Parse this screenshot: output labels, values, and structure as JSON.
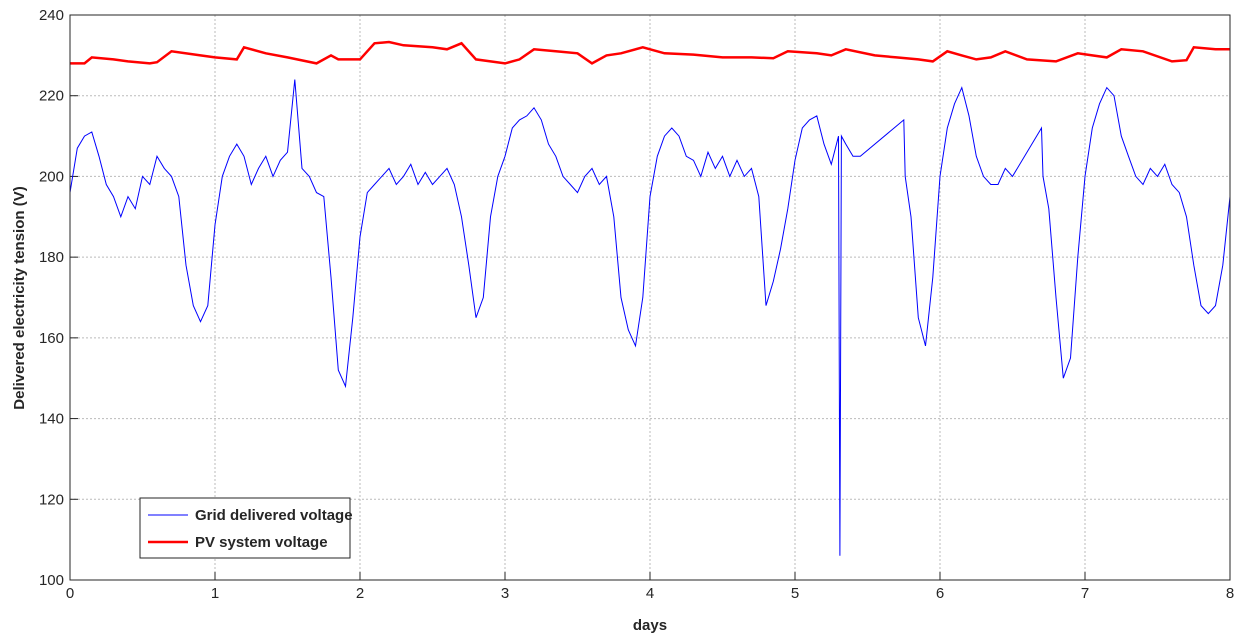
{
  "chart_data": {
    "type": "line",
    "xlabel": "days",
    "ylabel": "Delivered electricity tension (V)",
    "xlim": [
      0,
      8
    ],
    "ylim": [
      100,
      240
    ],
    "xticks": [
      0,
      1,
      2,
      3,
      4,
      5,
      6,
      7,
      8
    ],
    "yticks": [
      100,
      120,
      140,
      160,
      180,
      200,
      220,
      240
    ],
    "grid": true,
    "legend": "lower left",
    "series": [
      {
        "name": "Grid delivered voltage",
        "color": "#0000ff",
        "width": 1,
        "x": [
          0,
          0.05,
          0.1,
          0.15,
          0.2,
          0.25,
          0.3,
          0.35,
          0.4,
          0.45,
          0.5,
          0.55,
          0.6,
          0.65,
          0.7,
          0.75,
          0.8,
          0.85,
          0.9,
          0.95,
          1.0,
          1.05,
          1.1,
          1.15,
          1.2,
          1.25,
          1.3,
          1.35,
          1.4,
          1.45,
          1.5,
          1.55,
          1.6,
          1.65,
          1.7,
          1.75,
          1.8,
          1.85,
          1.9,
          1.95,
          2.0,
          2.05,
          2.1,
          2.15,
          2.2,
          2.25,
          2.3,
          2.35,
          2.4,
          2.45,
          2.5,
          2.55,
          2.6,
          2.65,
          2.7,
          2.75,
          2.8,
          2.85,
          2.9,
          2.95,
          3.0,
          3.05,
          3.1,
          3.15,
          3.2,
          3.25,
          3.3,
          3.35,
          3.4,
          3.45,
          3.5,
          3.55,
          3.6,
          3.65,
          3.7,
          3.75,
          3.8,
          3.85,
          3.9,
          3.95,
          4.0,
          4.05,
          4.1,
          4.15,
          4.2,
          4.25,
          4.3,
          4.35,
          4.4,
          4.45,
          4.5,
          4.55,
          4.6,
          4.65,
          4.7,
          4.75,
          4.8,
          4.85,
          4.9,
          4.95,
          5.0,
          5.05,
          5.1,
          5.15,
          5.2,
          5.25,
          5.3,
          5.31,
          5.32,
          5.35,
          5.4,
          5.45,
          5.75,
          5.76,
          5.8,
          5.85,
          5.9,
          5.95,
          6.0,
          6.05,
          6.1,
          6.15,
          6.2,
          6.25,
          6.3,
          6.35,
          6.4,
          6.45,
          6.5,
          6.7,
          6.71,
          6.75,
          6.8,
          6.85,
          6.9,
          6.95,
          7.0,
          7.05,
          7.1,
          7.15,
          7.2,
          7.25,
          7.3,
          7.35,
          7.4,
          7.45,
          7.5,
          7.55,
          7.6,
          7.65,
          7.7,
          7.75,
          7.8,
          7.85,
          7.9,
          7.95,
          8.0
        ],
        "values": [
          196,
          207,
          210,
          211,
          205,
          198,
          195,
          190,
          195,
          192,
          200,
          198,
          205,
          202,
          200,
          195,
          178,
          168,
          164,
          168,
          188,
          200,
          205,
          208,
          205,
          198,
          202,
          205,
          200,
          204,
          206,
          224,
          202,
          200,
          196,
          195,
          175,
          152,
          148,
          165,
          185,
          196,
          198,
          200,
          202,
          198,
          200,
          203,
          198,
          201,
          198,
          200,
          202,
          198,
          190,
          178,
          165,
          170,
          190,
          200,
          205,
          212,
          214,
          215,
          217,
          214,
          208,
          205,
          200,
          198,
          196,
          200,
          202,
          198,
          200,
          190,
          170,
          162,
          158,
          170,
          195,
          205,
          210,
          212,
          210,
          205,
          204,
          200,
          206,
          202,
          205,
          200,
          204,
          200,
          202,
          195,
          168,
          174,
          182,
          192,
          204,
          212,
          214,
          215,
          208,
          203,
          210,
          106,
          210,
          208,
          205,
          205,
          214,
          200,
          190,
          165,
          158,
          175,
          200,
          212,
          218,
          222,
          215,
          205,
          200,
          198,
          198,
          202,
          200,
          212,
          200,
          192,
          170,
          150,
          155,
          180,
          200,
          212,
          218,
          222,
          220,
          210,
          205,
          200,
          198,
          202,
          200,
          203,
          198,
          196,
          190,
          178,
          168,
          166,
          168,
          178,
          195
        ]
      },
      {
        "name": "PV system voltage",
        "color": "#ff0000",
        "width": 2.5,
        "x": [
          0,
          0.1,
          0.15,
          0.3,
          0.4,
          0.55,
          0.6,
          0.7,
          0.9,
          1.0,
          1.15,
          1.2,
          1.35,
          1.5,
          1.7,
          1.8,
          1.85,
          2.0,
          2.1,
          2.2,
          2.3,
          2.5,
          2.6,
          2.7,
          2.8,
          2.9,
          3.0,
          3.1,
          3.2,
          3.35,
          3.5,
          3.6,
          3.7,
          3.8,
          3.95,
          4.1,
          4.3,
          4.5,
          4.7,
          4.85,
          4.95,
          5.15,
          5.25,
          5.35,
          5.55,
          5.7,
          5.85,
          5.95,
          6.05,
          6.15,
          6.25,
          6.35,
          6.45,
          6.6,
          6.8,
          6.95,
          7.05,
          7.15,
          7.25,
          7.4,
          7.6,
          7.7,
          7.75,
          7.9,
          8.0
        ],
        "values": [
          228,
          228,
          229.5,
          229,
          228.5,
          228,
          228.3,
          231,
          230,
          229.5,
          229,
          232,
          230.5,
          229.5,
          228,
          230,
          229,
          229,
          233,
          233.3,
          232.5,
          232,
          231.5,
          233,
          229,
          228.5,
          228,
          229,
          231.5,
          231,
          230.5,
          228,
          230,
          230.5,
          232,
          230.5,
          230.2,
          229.5,
          229.5,
          229.3,
          231,
          230.5,
          230,
          231.5,
          230,
          229.5,
          229,
          228.5,
          231,
          230,
          229,
          229.5,
          231,
          229,
          228.5,
          230.5,
          230,
          229.5,
          231.5,
          231,
          228.5,
          228.8,
          232,
          231.5,
          231.5
        ]
      }
    ]
  }
}
